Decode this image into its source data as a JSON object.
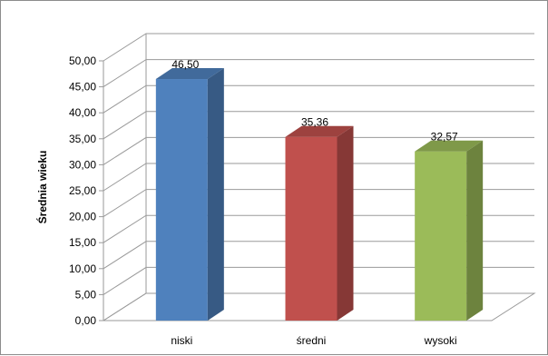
{
  "chart_data": {
    "type": "bar",
    "categories": [
      "niski",
      "średni",
      "wysoki"
    ],
    "series": [
      {
        "values": [
          46.5,
          35.36,
          32.57
        ]
      }
    ],
    "data_labels": [
      "46,50",
      "35,36",
      "32,57"
    ],
    "ylabel": "Średnia wieku",
    "xlabel": "",
    "ylim": [
      0,
      50
    ],
    "ytick_step": 5,
    "ytick_labels": [
      "0,00",
      "5,00",
      "10,00",
      "15,00",
      "20,00",
      "25,00",
      "30,00",
      "35,00",
      "40,00",
      "45,00",
      "50,00"
    ],
    "grid": true,
    "style": "3d-column",
    "colors": [
      "#4F81BD",
      "#C0504D",
      "#9BBB59"
    ]
  }
}
